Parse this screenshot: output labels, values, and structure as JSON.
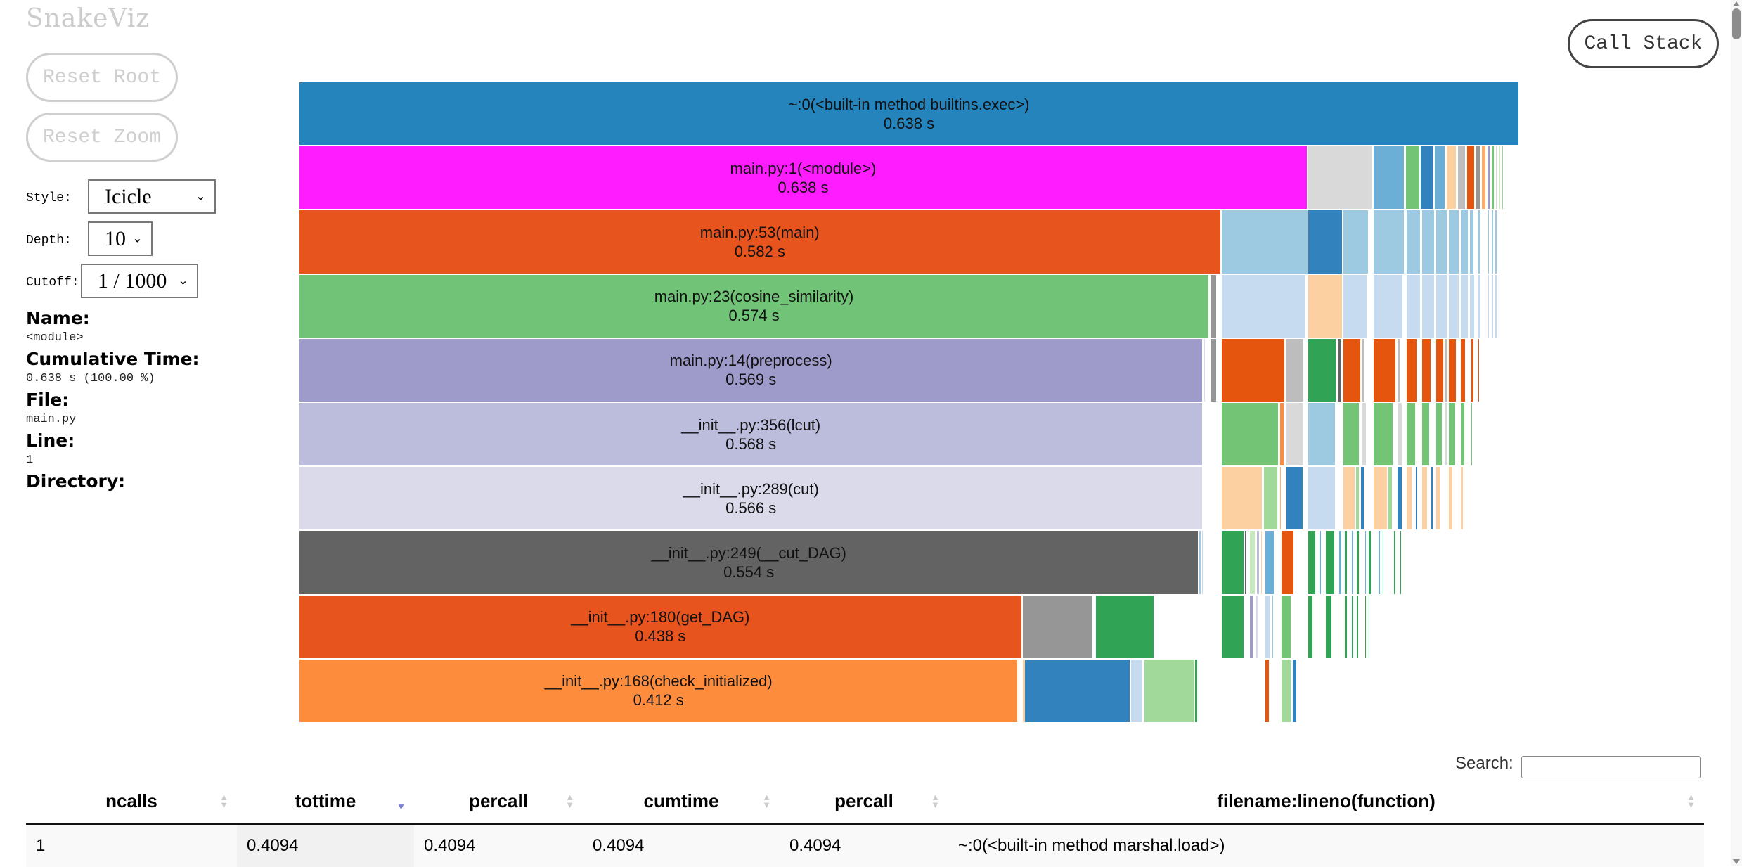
{
  "app": {
    "title": "SnakeViz"
  },
  "buttons": {
    "reset_root": "Reset Root",
    "reset_zoom": "Reset Zoom",
    "call_stack": "Call Stack"
  },
  "controls": {
    "style": {
      "label": "Style:",
      "value": "Icicle"
    },
    "depth": {
      "label": "Depth:",
      "value": "10"
    },
    "cutoff": {
      "label": "Cutoff:",
      "value": "1 / 1000"
    }
  },
  "info": {
    "name_label": "Name:",
    "name_value": "<module>",
    "cumtime_label": "Cumulative Time:",
    "cumtime_value": "0.638 s (100.00 %)",
    "file_label": "File:",
    "file_value": "main.py",
    "line_label": "Line:",
    "line_value": "1",
    "directory_label": "Directory:",
    "directory_value": ""
  },
  "chart_data": {
    "type": "icicle",
    "title": "",
    "unit": "s",
    "total": 0.638,
    "depth": 10,
    "labeled_nodes": [
      {
        "depth": 0,
        "name": "~:0(<built-in method builtins.exec>)",
        "time": 0.638,
        "color": "#2484bb"
      },
      {
        "depth": 1,
        "name": "main.py:1(<module>)",
        "time": 0.638,
        "color": "#ff1cff"
      },
      {
        "depth": 2,
        "name": "main.py:53(main)",
        "time": 0.582,
        "color": "#e8541e"
      },
      {
        "depth": 3,
        "name": "main.py:23(cosine_similarity)",
        "time": 0.574,
        "color": "#71c477"
      },
      {
        "depth": 4,
        "name": "main.py:14(preprocess)",
        "time": 0.569,
        "color": "#9e9ac9"
      },
      {
        "depth": 5,
        "name": "__init__.py:356(lcut)",
        "time": 0.568,
        "color": "#bcbddc"
      },
      {
        "depth": 6,
        "name": "__init__.py:289(cut)",
        "time": 0.566,
        "color": "#dadaeb"
      },
      {
        "depth": 7,
        "name": "__init__.py:249(__cut_DAG)",
        "time": 0.554,
        "color": "#636363"
      },
      {
        "depth": 8,
        "name": "__init__.py:180(get_DAG)",
        "time": 0.438,
        "color": "#e8541e"
      },
      {
        "depth": 9,
        "name": "__init__.py:168(check_initialized)",
        "time": 0.412,
        "color": "#fd8d3c"
      }
    ],
    "small_nodes": [
      [],
      [
        [
          0.8265,
          0.053,
          "#d9d9d9"
        ],
        [
          0.88,
          0.026,
          "#6baed6"
        ],
        [
          0.9065,
          0.012,
          "#74c476"
        ],
        [
          0.919,
          0.011,
          "#3182bd"
        ],
        [
          0.9305,
          0.009,
          "#6baed6"
        ],
        [
          0.94,
          0.009,
          "#fdd0a2"
        ],
        [
          0.9495,
          0.007,
          "#bdbdbd"
        ],
        [
          0.957,
          0.007,
          "#e6550d"
        ],
        [
          0.9645,
          0.004,
          "#969696"
        ],
        [
          0.969,
          0.004,
          "#fdae6b"
        ],
        [
          0.9735,
          0.003,
          "#9e9ac8"
        ],
        [
          0.977,
          0.003,
          "#74c476"
        ],
        [
          0.9805,
          0.002,
          "#d9d9d9"
        ],
        [
          0.983,
          0.002,
          "#c7e9c0"
        ],
        [
          0.9855,
          0.002,
          "#a1d99b"
        ],
        [
          0.988,
          0.001,
          "#31a354"
        ],
        [
          0.99,
          0.001,
          "#c7e9c0"
        ],
        [
          0.992,
          0.001,
          "#a1d99b"
        ]
      ],
      [
        [
          0.756,
          0.071,
          "#9ecae1"
        ],
        [
          0.8265,
          0.029,
          "#3182bd"
        ],
        [
          0.8555,
          0.021,
          "#9ecae1"
        ],
        [
          0.8775,
          0.001,
          "#c7e9c0"
        ],
        [
          0.88,
          0.026,
          "#9ecae1"
        ],
        [
          0.9075,
          0.012,
          "#9ecae1"
        ],
        [
          0.92,
          0.011,
          "#9ecae1"
        ],
        [
          0.9315,
          0.01,
          "#9ecae1"
        ],
        [
          0.942,
          0.009,
          "#9ecae1"
        ],
        [
          0.9515,
          0.007,
          "#9ecae1"
        ],
        [
          0.959,
          0.004,
          "#9ecae1"
        ],
        [
          0.964,
          0.001,
          "#636363"
        ],
        [
          0.966,
          0.003,
          "#9ecae1"
        ],
        [
          0.974,
          0.002,
          "#9ecae1"
        ],
        [
          0.977,
          0.002,
          "#9ecae1"
        ],
        [
          0.98,
          0.002,
          "#9ecae1"
        ],
        [
          0.983,
          0.001,
          "#c6dbef"
        ],
        [
          0.986,
          0.001,
          "#dadaeb"
        ],
        [
          0.989,
          0.001,
          "#eeeeee"
        ]
      ],
      [
        [
          0.7465,
          0.006,
          "#969696"
        ],
        [
          0.756,
          0.069,
          "#c6dbef"
        ],
        [
          0.8265,
          0.029,
          "#fdd0a2"
        ],
        [
          0.8555,
          0.02,
          "#c6dbef"
        ],
        [
          0.88,
          0.025,
          "#c6dbef"
        ],
        [
          0.9075,
          0.012,
          "#c6dbef"
        ],
        [
          0.92,
          0.011,
          "#c6dbef"
        ],
        [
          0.9315,
          0.01,
          "#c6dbef"
        ],
        [
          0.942,
          0.009,
          "#c6dbef"
        ],
        [
          0.9515,
          0.007,
          "#c6dbef"
        ],
        [
          0.959,
          0.005,
          "#c6dbef"
        ],
        [
          0.966,
          0.003,
          "#c6dbef"
        ],
        [
          0.974,
          0.002,
          "#c6dbef"
        ],
        [
          0.977,
          0.002,
          "#c6dbef"
        ],
        [
          0.98,
          0.002,
          "#c6dbef"
        ],
        [
          0.983,
          0.001,
          "#c6dbef"
        ]
      ],
      [
        [
          0.741,
          0.002,
          "#dadaeb"
        ],
        [
          0.7465,
          0.006,
          "#969696"
        ],
        [
          0.756,
          0.052,
          "#e6550d"
        ],
        [
          0.809,
          0.015,
          "#bdbdbd"
        ],
        [
          0.8265,
          0.024,
          "#31a354"
        ],
        [
          0.851,
          0.003,
          "#636363"
        ],
        [
          0.8555,
          0.015,
          "#e6550d"
        ],
        [
          0.871,
          0.003,
          "#bdbdbd"
        ],
        [
          0.88,
          0.019,
          "#e6550d"
        ],
        [
          0.8995,
          0.004,
          "#bdbdbd"
        ],
        [
          0.9075,
          0.009,
          "#e6550d"
        ],
        [
          0.917,
          0.002,
          "#bdbdbd"
        ],
        [
          0.92,
          0.008,
          "#e6550d"
        ],
        [
          0.9285,
          0.002,
          "#bdbdbd"
        ],
        [
          0.9315,
          0.007,
          "#e6550d"
        ],
        [
          0.939,
          0.002,
          "#bdbdbd"
        ],
        [
          0.942,
          0.007,
          "#e6550d"
        ],
        [
          0.9495,
          0.001,
          "#bdbdbd"
        ],
        [
          0.9515,
          0.005,
          "#e6550d"
        ],
        [
          0.959,
          0.001,
          "#bdbdbd"
        ],
        [
          0.96,
          0.003,
          "#e6550d"
        ],
        [
          0.966,
          0.002,
          "#e6550d"
        ],
        [
          0.974,
          0.001,
          "#e6550d"
        ],
        [
          0.977,
          0.001,
          "#e6550d"
        ],
        [
          0.98,
          0.001,
          "#e6550d"
        ],
        [
          0.983,
          0.001,
          "#fdd0a2"
        ]
      ],
      [
        [
          0.756,
          0.047,
          "#74c476"
        ],
        [
          0.8035,
          0.004,
          "#fd8d3c"
        ],
        [
          0.809,
          0.015,
          "#d9d9d9"
        ],
        [
          0.8265,
          0.023,
          "#9ecae1"
        ],
        [
          0.8555,
          0.014,
          "#74c476"
        ],
        [
          0.87,
          0.001,
          "#fdd0a2"
        ],
        [
          0.871,
          0.004,
          "#d9d9d9"
        ],
        [
          0.88,
          0.017,
          "#74c476"
        ],
        [
          0.8975,
          0.001,
          "#fd8d3c"
        ],
        [
          0.8995,
          0.005,
          "#d9d9d9"
        ],
        [
          0.9075,
          0.008,
          "#74c476"
        ],
        [
          0.917,
          0.002,
          "#d9d9d9"
        ],
        [
          0.92,
          0.007,
          "#74c476"
        ],
        [
          0.9285,
          0.002,
          "#d9d9d9"
        ],
        [
          0.9315,
          0.006,
          "#74c476"
        ],
        [
          0.939,
          0.002,
          "#d9d9d9"
        ],
        [
          0.942,
          0.006,
          "#74c476"
        ],
        [
          0.9515,
          0.004,
          "#74c476"
        ],
        [
          0.96,
          0.002,
          "#74c476"
        ],
        [
          0.966,
          0.001,
          "#74c476"
        ],
        [
          0.974,
          0.001,
          "#a1d99b"
        ],
        [
          0.977,
          0.001,
          "#74c476"
        ],
        [
          0.98,
          0.001,
          "#a1d99b"
        ],
        [
          0.983,
          0.001,
          "#c7e9c0"
        ]
      ],
      [
        [
          0.756,
          0.034,
          "#fdd0a2"
        ],
        [
          0.7905,
          0.012,
          "#a1d99b"
        ],
        [
          0.8035,
          0.002,
          "#fdae6b"
        ],
        [
          0.809,
          0.014,
          "#3182bd"
        ],
        [
          0.8265,
          0.023,
          "#c6dbef"
        ],
        [
          0.8555,
          0.01,
          "#fdd0a2"
        ],
        [
          0.866,
          0.003,
          "#a1d99b"
        ],
        [
          0.87,
          0.003,
          "#3182bd"
        ],
        [
          0.88,
          0.012,
          "#fdd0a2"
        ],
        [
          0.8925,
          0.004,
          "#a1d99b"
        ],
        [
          0.8995,
          0.005,
          "#3182bd"
        ],
        [
          0.9075,
          0.005,
          "#fdd0a2"
        ],
        [
          0.913,
          0.001,
          "#a1d99b"
        ],
        [
          0.915,
          0.002,
          "#3182bd"
        ],
        [
          0.92,
          0.005,
          "#fdd0a2"
        ],
        [
          0.9255,
          0.001,
          "#a1d99b"
        ],
        [
          0.9275,
          0.002,
          "#3182bd"
        ],
        [
          0.9315,
          0.004,
          "#fdd0a2"
        ],
        [
          0.936,
          0.001,
          "#a1d99b"
        ],
        [
          0.938,
          0.001,
          "#3182bd"
        ],
        [
          0.942,
          0.004,
          "#fdd0a2"
        ],
        [
          0.9465,
          0.001,
          "#a1d99b"
        ],
        [
          0.9485,
          0.001,
          "#3182bd"
        ],
        [
          0.9515,
          0.003,
          "#fdd0a2"
        ],
        [
          0.955,
          0.001,
          "#a1d99b"
        ],
        [
          0.957,
          0.001,
          "#3182bd"
        ],
        [
          0.96,
          0.001,
          "#c6dbef"
        ],
        [
          0.966,
          0.001,
          "#fdd0a2"
        ],
        [
          0.974,
          0.001,
          "#fee6ce"
        ],
        [
          0.977,
          0.001,
          "#fee6ce"
        ],
        [
          0.98,
          0.001,
          "#fee6ce"
        ]
      ],
      [
        [
          0.7375,
          0.002,
          "#9ecae1"
        ],
        [
          0.7395,
          0.002,
          "#c6dbef"
        ],
        [
          0.756,
          0.019,
          "#31a354"
        ],
        [
          0.775,
          0.002,
          "#636363"
        ],
        [
          0.7775,
          0.001,
          "#d9d9d9"
        ],
        [
          0.779,
          0.005,
          "#c7e9c0"
        ],
        [
          0.7845,
          0.003,
          "#bcbddc"
        ],
        [
          0.788,
          0.002,
          "#fdd0a2"
        ],
        [
          0.7915,
          0.008,
          "#6baed6"
        ],
        [
          0.8035,
          0.001,
          "#fdd0a2"
        ],
        [
          0.8035,
          0.0001,
          "#fff"
        ],
        [
          0.801,
          0.0001,
          "#fff"
        ],
        [
          0.8045,
          0.011,
          "#e6550d"
        ],
        [
          0.816,
          0.002,
          "#bdbdbd"
        ],
        [
          0.8265,
          0.007,
          "#31a354"
        ],
        [
          0.834,
          0.001,
          "#c7e9c0"
        ],
        [
          0.836,
          0.002,
          "#6baed6"
        ],
        [
          0.841,
          0.008,
          "#31a354"
        ],
        [
          0.85,
          0.001,
          "#c7e9c0"
        ],
        [
          0.852,
          0.003,
          "#6baed6"
        ],
        [
          0.8565,
          0.003,
          "#31a354"
        ],
        [
          0.8625,
          0.002,
          "#6baed6"
        ],
        [
          0.8665,
          0.003,
          "#31a354"
        ],
        [
          0.873,
          0.002,
          "#6baed6"
        ],
        [
          0.876,
          0.003,
          "#31a354"
        ],
        [
          0.8845,
          0.002,
          "#6baed6"
        ],
        [
          0.8875,
          0.002,
          "#31a354"
        ],
        [
          0.894,
          0.001,
          "#6baed6"
        ],
        [
          0.897,
          0.002,
          "#31a354"
        ],
        [
          0.902,
          0.002,
          "#31a354"
        ],
        [
          0.9075,
          0.001,
          "#31a354"
        ]
      ],
      [
        [
          0.756,
          0.019,
          "#31a354"
        ],
        [
          0.779,
          0.003,
          "#9e9ac8"
        ],
        [
          0.7835,
          0.003,
          "#dadaeb"
        ],
        [
          0.7875,
          0.001,
          "#31a354"
        ],
        [
          0.7915,
          0.005,
          "#c6dbef"
        ],
        [
          0.797,
          0.002,
          "#9ecae1"
        ],
        [
          0.7995,
          0.001,
          "#fdae6b"
        ],
        [
          0.8045,
          0.009,
          "#74c476"
        ],
        [
          0.814,
          0.001,
          "#fdd0a2"
        ],
        [
          0.816,
          0.002,
          "#d9d9d9"
        ],
        [
          0.8265,
          0.005,
          "#31a354"
        ],
        [
          0.832,
          0.001,
          "#9e9ac8"
        ],
        [
          0.841,
          0.006,
          "#31a354"
        ],
        [
          0.848,
          0.001,
          "#9e9ac8"
        ],
        [
          0.851,
          0.001,
          "#c6dbef"
        ],
        [
          0.8565,
          0.003,
          "#31a354"
        ],
        [
          0.8625,
          0.002,
          "#31a354"
        ],
        [
          0.8665,
          0.002,
          "#31a354"
        ],
        [
          0.873,
          0.002,
          "#31a354"
        ],
        [
          0.876,
          0.002,
          "#31a354"
        ],
        [
          0.8845,
          0.001,
          "#31a354"
        ],
        [
          0.8875,
          0.001,
          "#31a354"
        ]
      ],
      [
        [
          0.5925,
          0.004,
          "#fdd0a2"
        ],
        [
          0.5945,
          0.087,
          "#3182bd"
        ],
        [
          0.6815,
          0.01,
          "#c6dbef"
        ],
        [
          0.6925,
          0.042,
          "#a1d99b"
        ],
        [
          0.734,
          0.003,
          "#31a354"
        ],
        [
          0.7875,
          0.001,
          "#31a354"
        ],
        [
          0.7915,
          0.004,
          "#e6550d"
        ],
        [
          0.796,
          0.001,
          "#9ecae1"
        ],
        [
          0.799,
          0.001,
          "#fdd0a2"
        ],
        [
          0.8045,
          0.009,
          "#a1d99b"
        ],
        [
          0.814,
          0.004,
          "#3182bd"
        ],
        [
          0.829,
          0.001,
          "#e6550d"
        ],
        [
          0.85,
          0.001,
          "#e6550d"
        ],
        [
          0.863,
          0.001,
          "#fc9272"
        ],
        [
          0.872,
          0.001,
          "#fc9272"
        ],
        [
          0.88,
          0.0005,
          "#fcbba1"
        ],
        [
          0.888,
          0.0005,
          "#fcbba1"
        ]
      ]
    ],
    "split_nodes": [
      {
        "depth": 3,
        "start": 0.7465,
        "width": 0.0055,
        "color": "#969696"
      },
      {
        "depth": 8,
        "start": 0.5925,
        "width": 0.0587,
        "color": "#969696"
      },
      {
        "depth": 8,
        "start": 0.6525,
        "width": 0.0485,
        "color": "#31a354"
      }
    ]
  },
  "search": {
    "label": "Search:",
    "placeholder": "",
    "value": ""
  },
  "table": {
    "columns": [
      {
        "label": "ncalls",
        "sort": "none"
      },
      {
        "label": "tottime",
        "sort": "desc"
      },
      {
        "label": "percall",
        "sort": "none"
      },
      {
        "label": "cumtime",
        "sort": "none"
      },
      {
        "label": "percall",
        "sort": "none"
      },
      {
        "label": "filename:lineno(function)",
        "sort": "none"
      }
    ],
    "rows": [
      [
        "1",
        "0.4094",
        "0.4094",
        "0.4094",
        "0.4094",
        "~:0(<built-in method marshal.load>)"
      ]
    ]
  }
}
